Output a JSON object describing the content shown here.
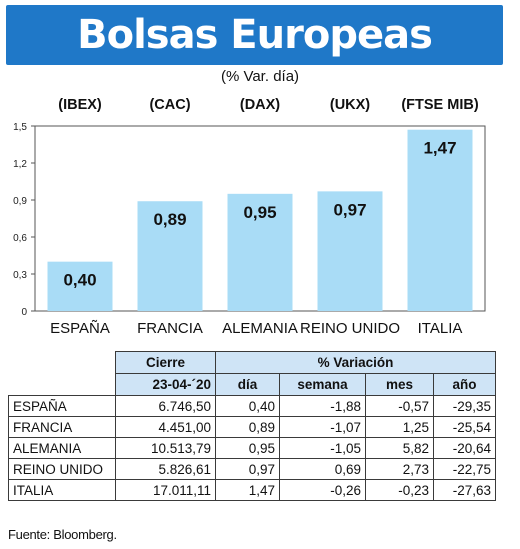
{
  "header": {
    "title": "Bolsas Europeas",
    "subtitle": "(% Var. día)"
  },
  "chart_data": {
    "type": "bar",
    "categories": [
      "ESPAÑA",
      "FRANCIA",
      "ALEMANIA",
      "REINO UNIDO",
      "ITALIA"
    ],
    "index_labels": [
      "(IBEX)",
      "(CAC)",
      "(DAX)",
      "(UKX)",
      "(FTSE MIB)"
    ],
    "values": [
      0.4,
      0.89,
      0.95,
      0.97,
      1.47
    ],
    "value_labels": [
      "0,40",
      "0,89",
      "0,95",
      "0,97",
      "1,47"
    ],
    "ylim": [
      0,
      1.5
    ],
    "yticks": [
      0,
      0.3,
      0.6,
      0.9,
      1.2,
      1.5
    ],
    "ytick_labels": [
      "0",
      "0,3",
      "0,6",
      "0,9",
      "1,2",
      "1,5"
    ],
    "bar_color": "#a9dcf6",
    "grid": false
  },
  "table": {
    "group_headers": {
      "cierre": "Cierre",
      "variacion": "% Variación"
    },
    "sub_headers": {
      "date": "23-04-´20",
      "dia": "día",
      "semana": "semana",
      "mes": "mes",
      "ano": "año"
    },
    "rows": [
      {
        "country": "ESPAÑA",
        "cierre": "6.746,50",
        "dia": "0,40",
        "semana": "-1,88",
        "mes": "-0,57",
        "ano": "-29,35"
      },
      {
        "country": "FRANCIA",
        "cierre": "4.451,00",
        "dia": "0,89",
        "semana": "-1,07",
        "mes": "1,25",
        "ano": "-25,54"
      },
      {
        "country": "ALEMANIA",
        "cierre": "10.513,79",
        "dia": "0,95",
        "semana": "-1,05",
        "mes": "5,82",
        "ano": "-20,64"
      },
      {
        "country": "REINO UNIDO",
        "cierre": "5.826,61",
        "dia": "0,97",
        "semana": "0,69",
        "mes": "2,73",
        "ano": "-22,75"
      },
      {
        "country": "ITALIA",
        "cierre": "17.011,11",
        "dia": "1,47",
        "semana": "-0,26",
        "mes": "-0,23",
        "ano": "-27,63"
      }
    ]
  },
  "source": "Fuente: Bloomberg.",
  "colors": {
    "title_bg": "#1f78c8",
    "header_bg": "#cfe4f6"
  }
}
